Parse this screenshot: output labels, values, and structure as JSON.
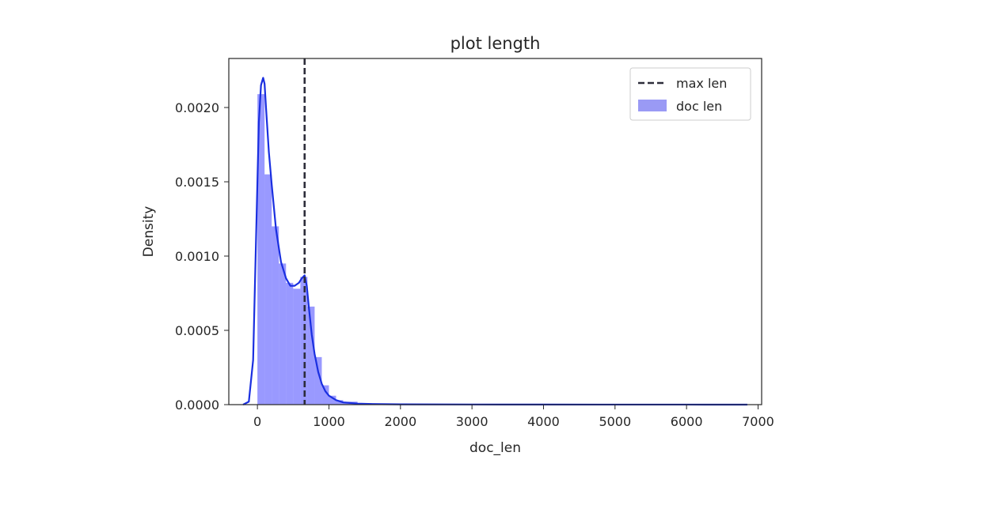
{
  "chart_data": {
    "type": "histogram",
    "title": "plot length",
    "xlabel": "doc_len",
    "ylabel": "Density",
    "xlim": [
      -400,
      7050
    ],
    "ylim": [
      0,
      0.00233
    ],
    "x_ticks": [
      0,
      1000,
      2000,
      3000,
      4000,
      5000,
      6000,
      7000
    ],
    "x_tick_labels": [
      "0",
      "1000",
      "2000",
      "3000",
      "4000",
      "5000",
      "6000",
      "7000"
    ],
    "y_ticks": [
      0.0,
      0.0005,
      0.001,
      0.0015,
      0.002
    ],
    "y_tick_labels": [
      "0.0000",
      "0.0005",
      "0.0010",
      "0.0015",
      "0.0020"
    ],
    "grid": false,
    "legend_position": "top-right",
    "series": [
      {
        "name": "doc len",
        "kind": "histogram",
        "color": "#0000ff",
        "bin_width": 100,
        "bins": [
          {
            "x0": 0,
            "x1": 100,
            "density": 0.00209
          },
          {
            "x0": 100,
            "x1": 200,
            "density": 0.00155
          },
          {
            "x0": 200,
            "x1": 300,
            "density": 0.0012
          },
          {
            "x0": 300,
            "x1": 400,
            "density": 0.00095
          },
          {
            "x0": 400,
            "x1": 500,
            "density": 0.00082
          },
          {
            "x0": 500,
            "x1": 600,
            "density": 0.00078
          },
          {
            "x0": 600,
            "x1": 700,
            "density": 0.00086
          },
          {
            "x0": 700,
            "x1": 800,
            "density": 0.00066
          },
          {
            "x0": 800,
            "x1": 900,
            "density": 0.00032
          },
          {
            "x0": 900,
            "x1": 1000,
            "density": 0.00013
          },
          {
            "x0": 1000,
            "x1": 1100,
            "density": 6e-05
          },
          {
            "x0": 1100,
            "x1": 1200,
            "density": 3e-05
          },
          {
            "x0": 1200,
            "x1": 1400,
            "density": 2e-05
          },
          {
            "x0": 1400,
            "x1": 1600,
            "density": 1e-05
          }
        ]
      },
      {
        "name": "doc len",
        "kind": "kde",
        "color": "#1a2fe0",
        "x": [
          -200,
          -120,
          -60,
          -20,
          20,
          50,
          80,
          100,
          120,
          160,
          200,
          260,
          330,
          400,
          460,
          520,
          580,
          620,
          660,
          690,
          720,
          760,
          800,
          850,
          900,
          950,
          1000,
          1100,
          1200,
          1400,
          1600,
          2000,
          3000,
          4000,
          5000,
          6000,
          6850
        ],
        "y": [
          0.0,
          2e-05,
          0.0003,
          0.0011,
          0.0019,
          0.00215,
          0.0022,
          0.00216,
          0.002,
          0.0017,
          0.00148,
          0.00118,
          0.00096,
          0.00085,
          0.0008,
          0.0008,
          0.00082,
          0.00085,
          0.00087,
          0.0008,
          0.00065,
          0.00047,
          0.00034,
          0.00022,
          0.00014,
          9e-05,
          6e-05,
          3e-05,
          1.5e-05,
          7e-06,
          4e-06,
          2e-06,
          1e-06,
          5e-07,
          3e-07,
          2e-07,
          0.0
        ]
      },
      {
        "name": "max len",
        "kind": "vline",
        "x": 660,
        "color": "#2d2d3a",
        "style": "dashed"
      }
    ],
    "legend": [
      {
        "label": "max len",
        "symbol": "dashed-line",
        "color": "#2d2d3a"
      },
      {
        "label": "doc len",
        "symbol": "patch",
        "color": "#9a9af5"
      }
    ]
  }
}
